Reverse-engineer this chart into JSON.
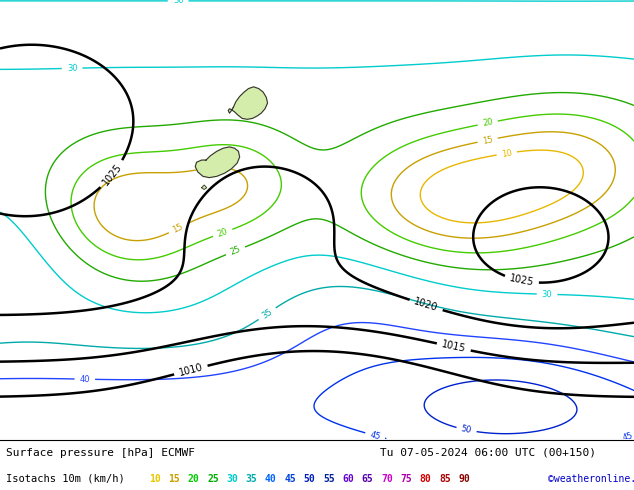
{
  "title_line1": "Surface pressure [hPa] ECMWF",
  "title_line2": "Tu 07-05-2024 06:00 UTC (00+150)",
  "title_line3_left": "Isotachs 10m (km/h)",
  "title_line3_right": "©weatheronline.co.uk",
  "legend_values": [
    10,
    15,
    20,
    25,
    30,
    35,
    40,
    45,
    50,
    55,
    60,
    65,
    70,
    75,
    80,
    85,
    90
  ],
  "legend_colors": [
    "#e8c800",
    "#c8a000",
    "#00cc00",
    "#00aa00",
    "#00cccc",
    "#00aaaa",
    "#0066ff",
    "#0044dd",
    "#0022bb",
    "#002299",
    "#6600cc",
    "#5500aa",
    "#cc00cc",
    "#aa00aa",
    "#cc0000",
    "#aa0000",
    "#880000"
  ],
  "bg_color": "#e8e8e8",
  "ocean_color": "#e8e8ee",
  "land_color": "#d4edaa",
  "land_border_color": "#333333",
  "pressure_color": "#000000",
  "figsize": [
    6.34,
    4.9
  ],
  "dpi": 100,
  "isotach_line_colors": {
    "10": "#e8b800",
    "15": "#c8a000",
    "20": "#44cc00",
    "25": "#22aa00",
    "30": "#00cccc",
    "35": "#00aaaa",
    "40": "#2244ff",
    "45": "#0033ee",
    "50": "#0022cc",
    "55": "#001199",
    "60": "#7700cc",
    "65": "#6600bb",
    "70": "#cc00cc",
    "75": "#aa00aa",
    "80": "#cc0000",
    "85": "#aa0000",
    "90": "#880000"
  }
}
